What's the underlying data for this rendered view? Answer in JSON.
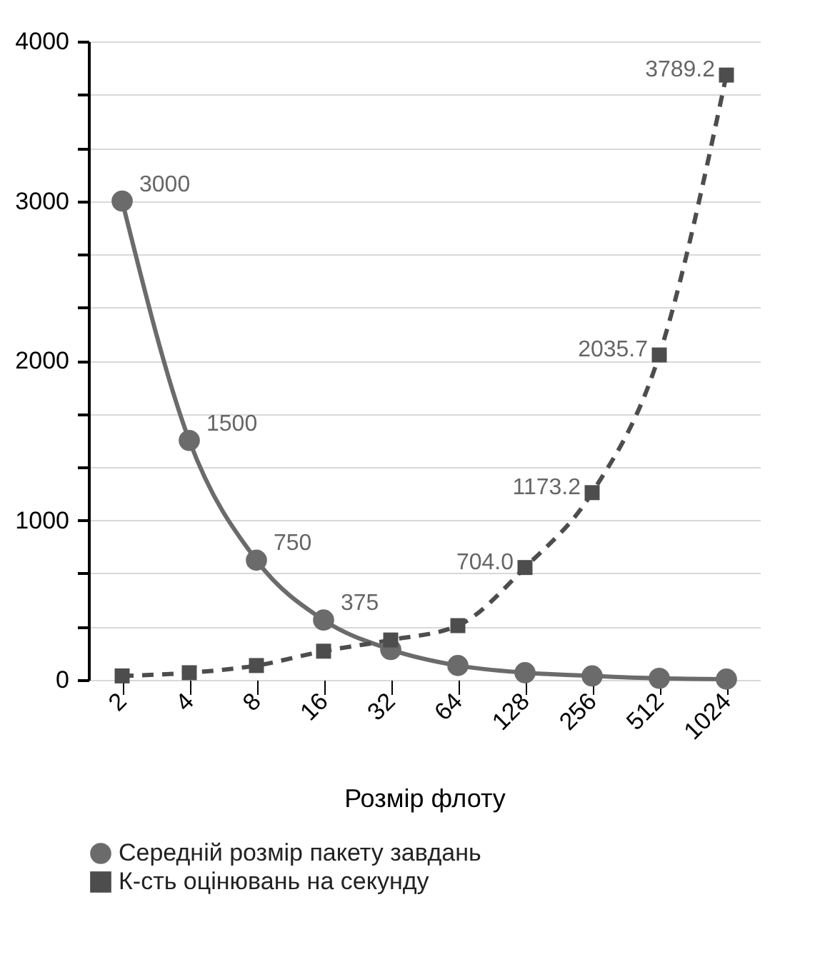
{
  "chart_data": {
    "type": "line",
    "xlabel": "Розмір флоту",
    "categories": [
      "2",
      "4",
      "8",
      "16",
      "32",
      "64",
      "128",
      "256",
      "512",
      "1024"
    ],
    "series": [
      {
        "name": "Середній розмір пакету завдань",
        "color": "#6b6b6b",
        "marker": "circle",
        "line_style": "solid",
        "values": [
          3000,
          1500,
          750,
          375,
          190,
          90,
          45,
          25,
          10,
          5
        ],
        "value_labels": [
          "3000",
          "1500",
          "750",
          "375",
          null,
          null,
          null,
          null,
          null,
          null
        ]
      },
      {
        "name": "К-сть оцінювань на секунду",
        "color": "#4d4d4d",
        "marker": "square",
        "line_style": "dashed",
        "values": [
          25,
          45,
          90,
          180,
          250,
          340,
          704.0,
          1173.2,
          2035.7,
          3789.2
        ],
        "value_labels": [
          null,
          null,
          null,
          null,
          null,
          null,
          "704.0",
          "1173.2",
          "2035.7",
          "3789.2"
        ]
      }
    ],
    "ylim": [
      0,
      4000
    ],
    "yticks": [
      0,
      {
        "value": 333.3,
        "label": null
      },
      {
        "value": 666.7,
        "label": null
      },
      1000,
      {
        "value": 1333.3,
        "label": null
      },
      {
        "value": 1666.7,
        "label": null
      },
      2000,
      {
        "value": 2333.3,
        "label": null
      },
      {
        "value": 2666.7,
        "label": null
      },
      3000,
      {
        "value": 3333.3,
        "label": null
      },
      {
        "value": 3666.7,
        "label": null
      },
      4000
    ],
    "grid": "y",
    "legend": "bottom"
  }
}
